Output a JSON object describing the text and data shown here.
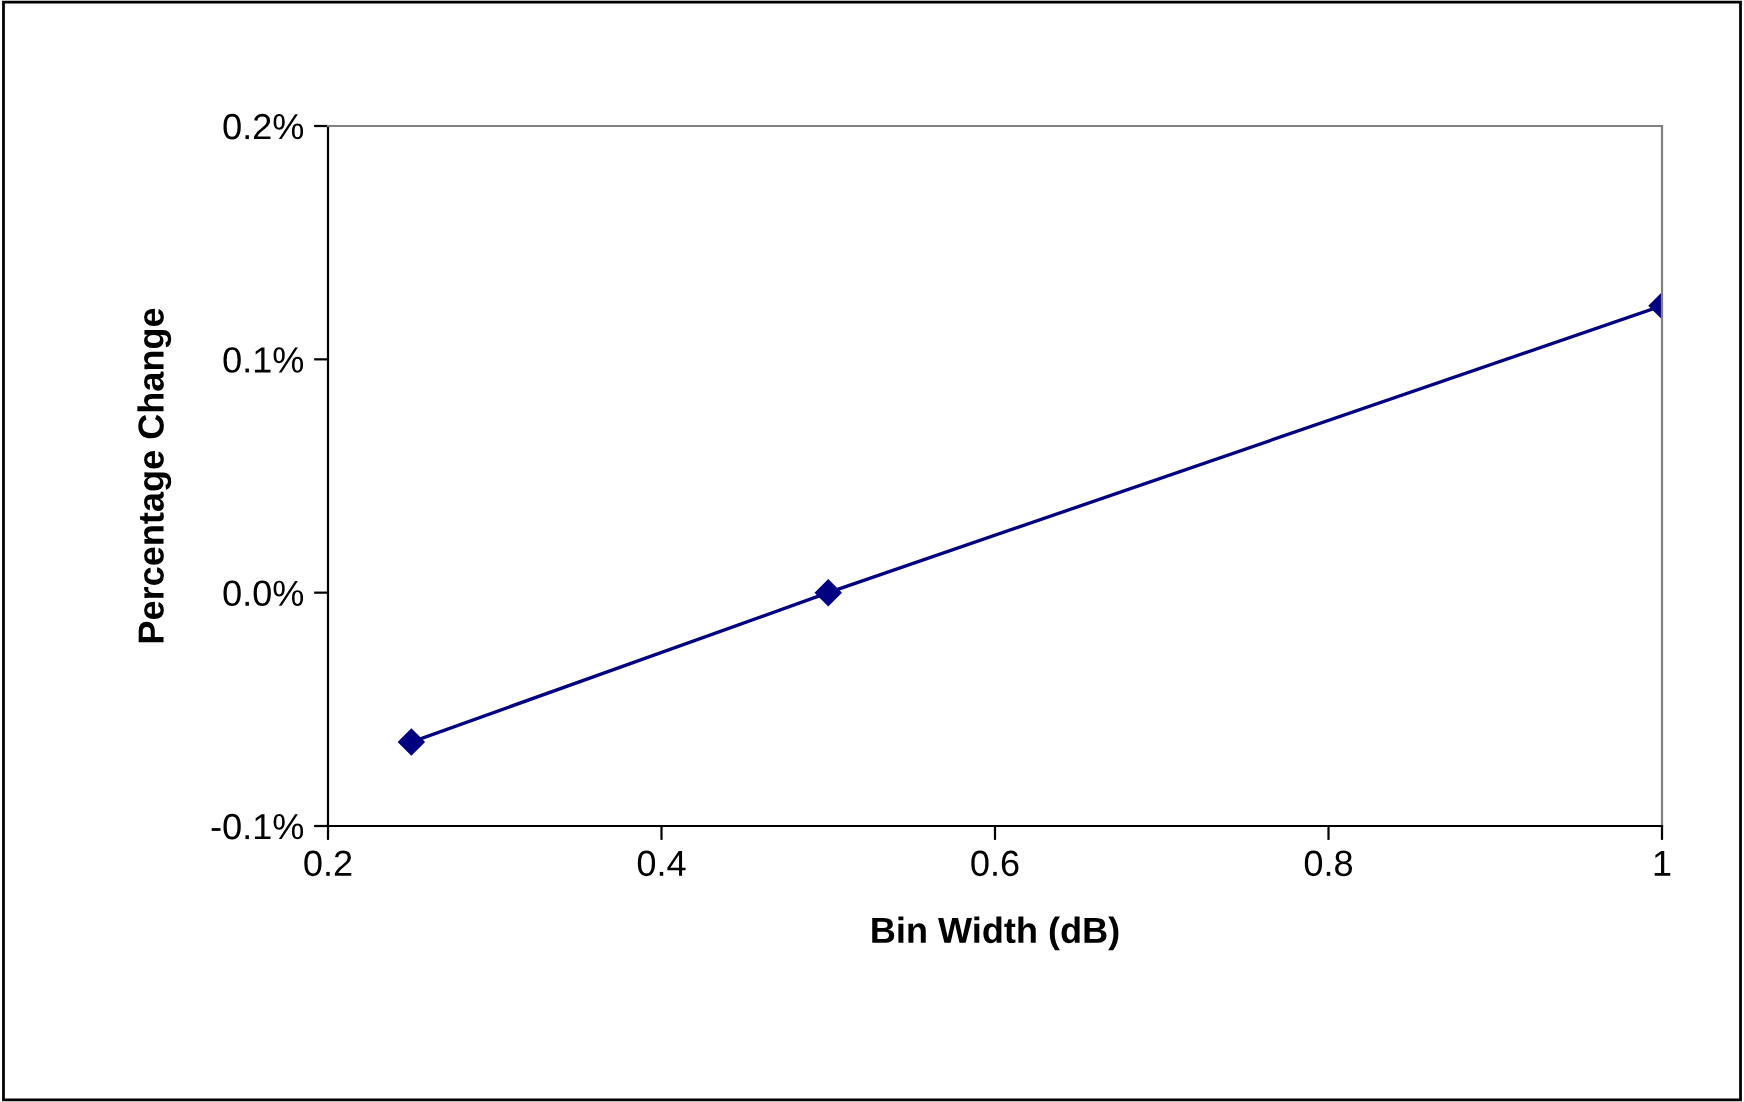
{
  "chart_data": {
    "type": "line",
    "xlabel": "Bin Width (dB)",
    "ylabel": "Percentage Change",
    "x": [
      0.25,
      0.5,
      1
    ],
    "series": [
      {
        "color": "#000080",
        "values": [
          -0.064,
          0.0,
          0.123
        ]
      }
    ],
    "xlim": [
      0.2,
      1
    ],
    "xticks": [
      0.2,
      0.4,
      0.6,
      0.8,
      1
    ],
    "ylim": [
      -0.1,
      0.2
    ],
    "yticks": [
      {
        "value": -0.1,
        "label": "-0.1%"
      },
      {
        "value": 0.0,
        "label": "0.0%"
      },
      {
        "value": 0.1,
        "label": "0.1%"
      },
      {
        "value": 0.2,
        "label": "0.2%"
      }
    ],
    "grid": false,
    "legend": false,
    "marker": "diamond",
    "line_style": "solid"
  }
}
